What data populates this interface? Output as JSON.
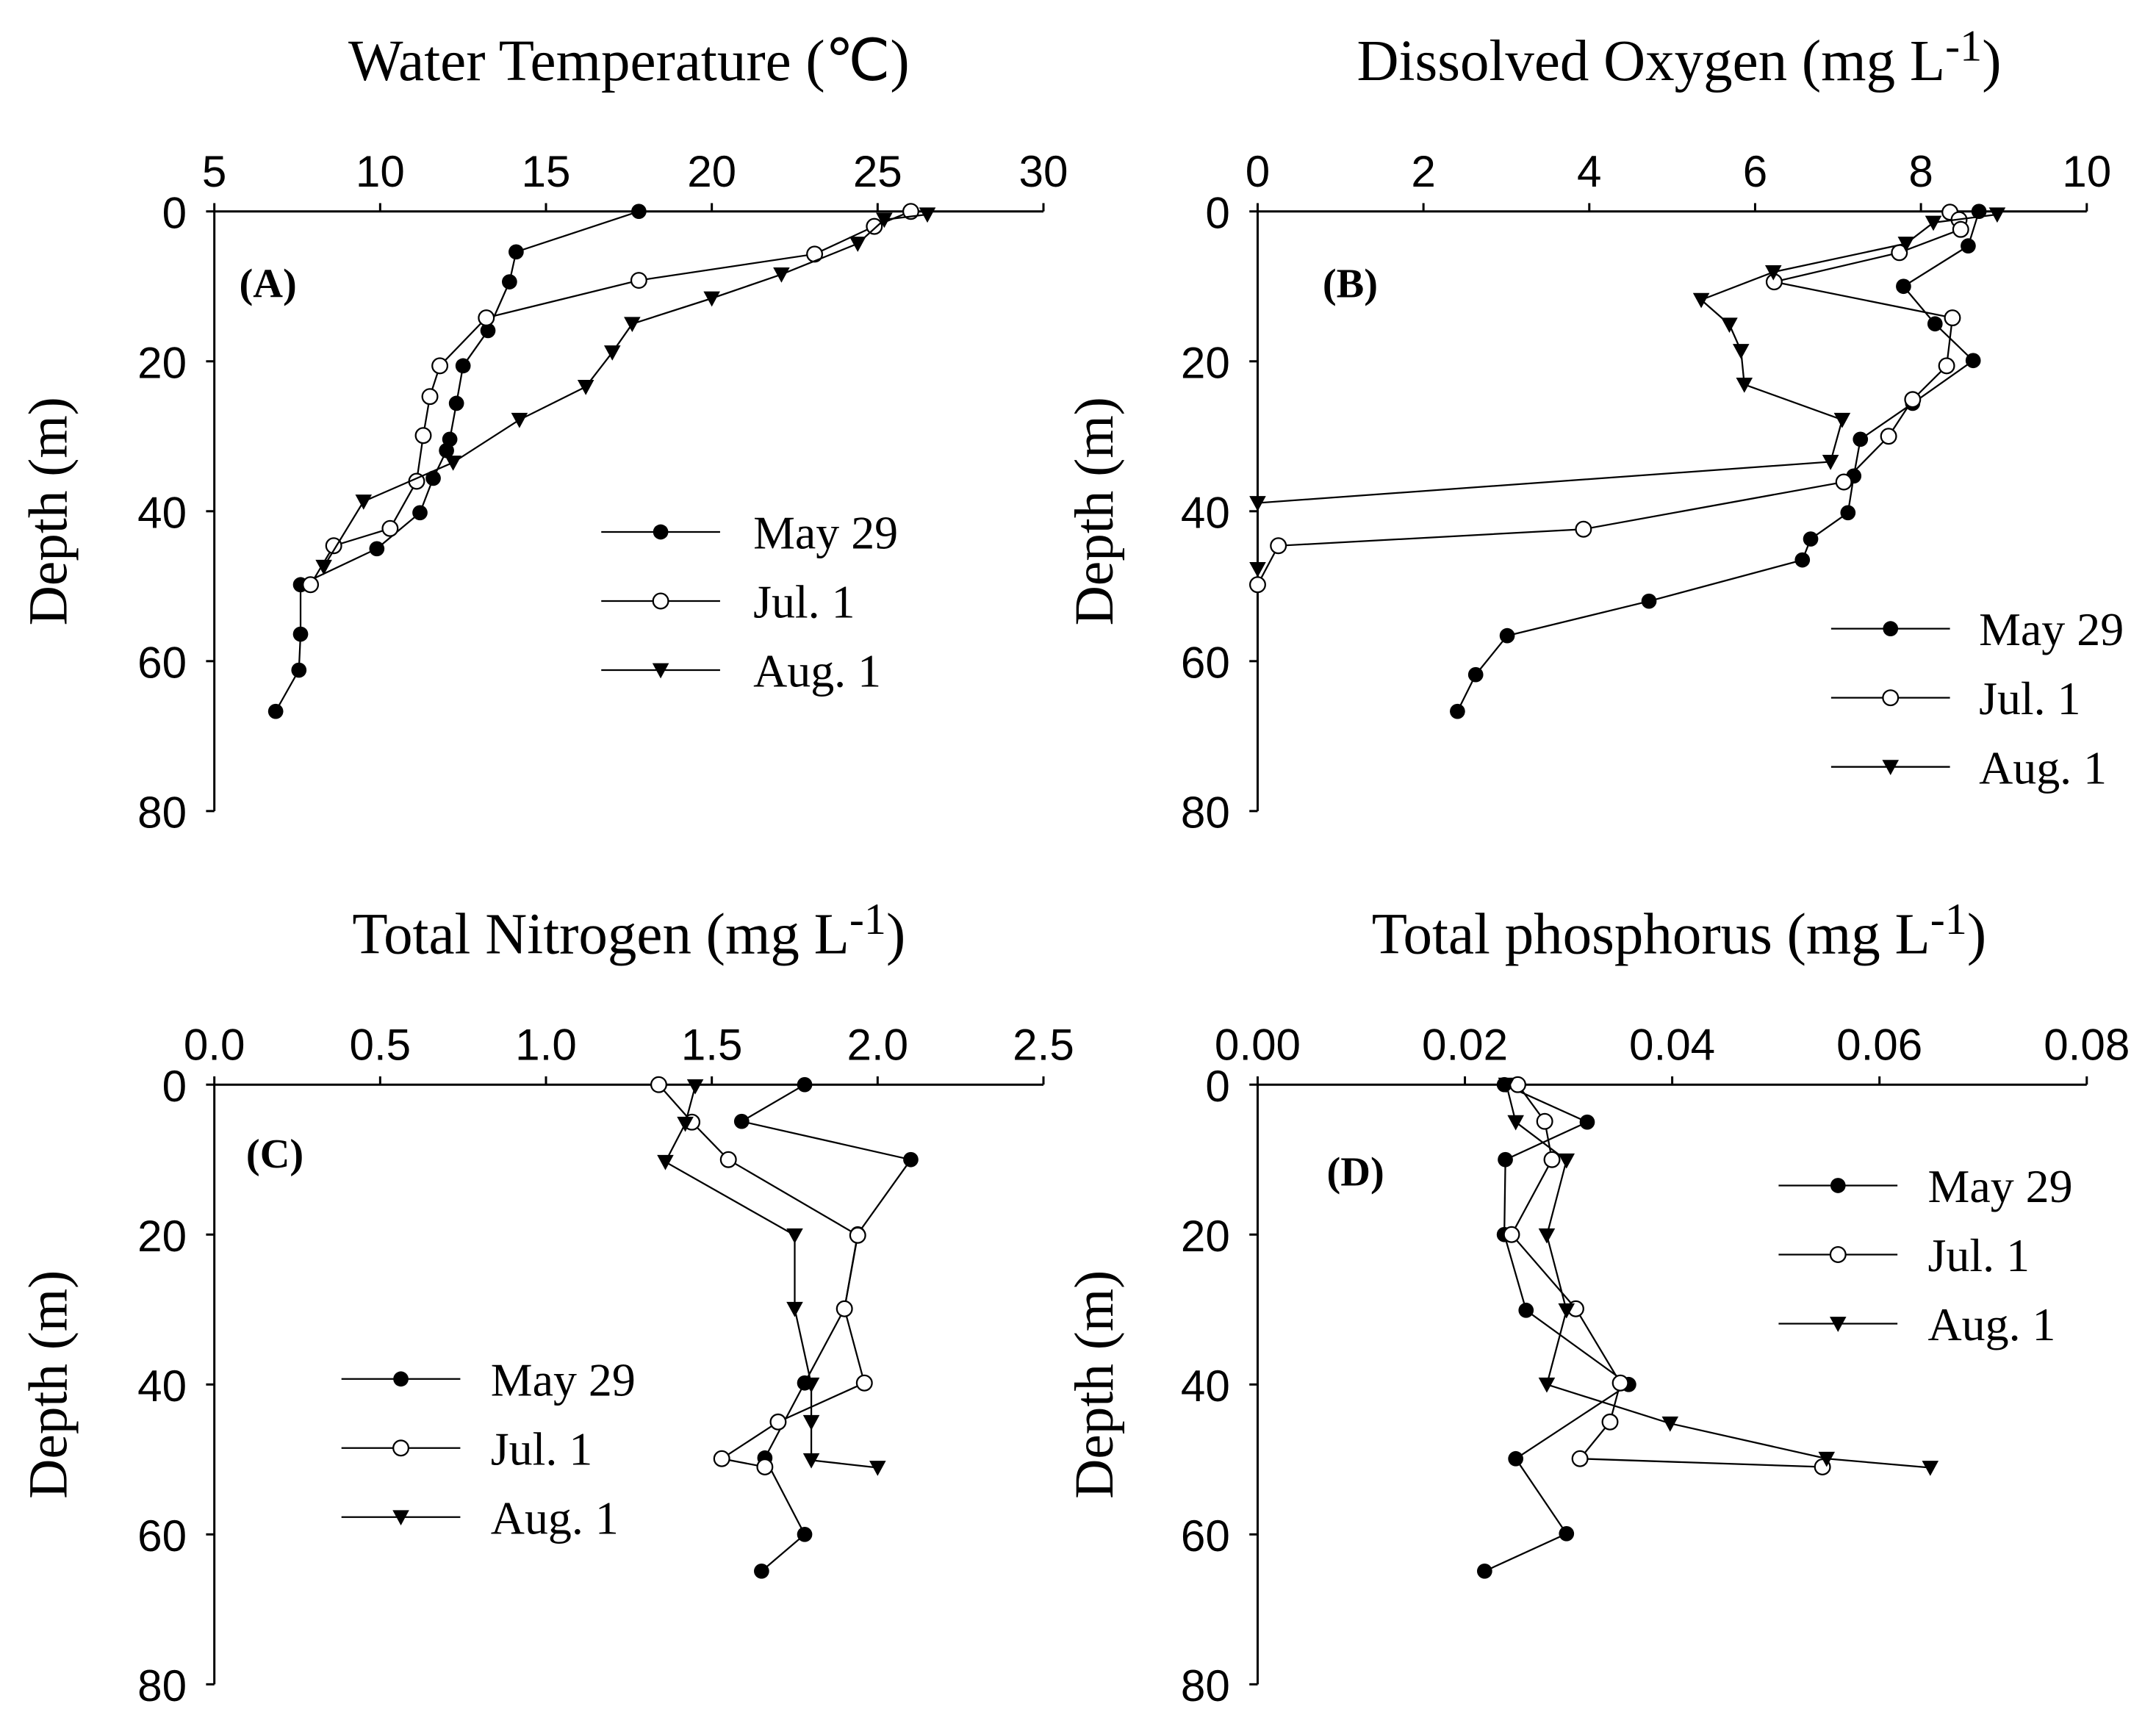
{
  "chart_data": [
    {
      "type": "line",
      "panel": "(A)",
      "title": "Water Temperature (℃)",
      "title_main": "Water Temperature (℃)",
      "title_sup": "",
      "title_end": "",
      "xlabel": "Water Temperature (℃)",
      "ylabel": "Depth (m)",
      "xlim": [
        5,
        30
      ],
      "ylim": [
        0,
        80
      ],
      "y_inverted": true,
      "x_axis_position": "top",
      "xticks": [
        "5",
        "10",
        "15",
        "20",
        "25",
        "30"
      ],
      "xtick_values": [
        5,
        10,
        15,
        20,
        25,
        30
      ],
      "yticks": [
        "0",
        "20",
        "40",
        "60",
        "80"
      ],
      "ytick_values": [
        0,
        20,
        40,
        60,
        80
      ],
      "legend_position": "center-right",
      "series": [
        {
          "name": "May 29",
          "marker": "filled-circle",
          "points": [
            [
              17.8,
              0
            ],
            [
              14.1,
              5.4
            ],
            [
              13.9,
              9.4
            ],
            [
              13.25,
              15.9
            ],
            [
              12.5,
              20.6
            ],
            [
              12.3,
              25.6
            ],
            [
              12.1,
              30.4
            ],
            [
              12.0,
              31.9
            ],
            [
              11.6,
              35.6
            ],
            [
              11.2,
              40.2
            ],
            [
              9.9,
              45
            ],
            [
              7.6,
              49.8
            ],
            [
              7.6,
              56.4
            ],
            [
              7.55,
              61.2
            ],
            [
              6.85,
              66.7
            ]
          ]
        },
        {
          "name": "Jul. 1",
          "marker": "open-circle",
          "points": [
            [
              26.0,
              0
            ],
            [
              24.9,
              2
            ],
            [
              23.1,
              5.7
            ],
            [
              17.8,
              9.2
            ],
            [
              13.2,
              14.2
            ],
            [
              11.8,
              20.6
            ],
            [
              11.5,
              24.7
            ],
            [
              11.3,
              29.9
            ],
            [
              11.1,
              36
            ],
            [
              10.3,
              42.3
            ],
            [
              8.6,
              44.6
            ],
            [
              7.9,
              49.8
            ]
          ]
        },
        {
          "name": "Aug. 1",
          "marker": "filled-triangle-down",
          "points": [
            [
              26.5,
              0.4
            ],
            [
              25.2,
              1.1
            ],
            [
              24.4,
              4.3
            ],
            [
              22.1,
              8.4
            ],
            [
              20.0,
              11.6
            ],
            [
              17.6,
              15
            ],
            [
              17.0,
              18.8
            ],
            [
              16.2,
              23.4
            ],
            [
              14.2,
              27.8
            ],
            [
              12.2,
              33.5
            ],
            [
              9.5,
              38.7
            ],
            [
              8.3,
              47.4
            ]
          ]
        }
      ]
    },
    {
      "type": "line",
      "panel": "(B)",
      "title": "Dissolved Oxygen (mg L-1)",
      "title_main": "Dissolved Oxygen (mg L",
      "title_sup": "-1",
      "title_end": ")",
      "xlabel": "Dissolved Oxygen (mg L-1)",
      "ylabel": "Depth (m)",
      "xlim": [
        0,
        10
      ],
      "ylim": [
        0,
        80
      ],
      "y_inverted": true,
      "x_axis_position": "top",
      "xticks": [
        "0",
        "2",
        "4",
        "6",
        "8",
        "10"
      ],
      "xtick_values": [
        0,
        2,
        4,
        6,
        8,
        10
      ],
      "yticks": [
        "0",
        "20",
        "40",
        "60",
        "80"
      ],
      "ytick_values": [
        0,
        20,
        40,
        60,
        80
      ],
      "legend_position": "bottom-right",
      "series": [
        {
          "name": "May 29",
          "marker": "filled-circle",
          "points": [
            [
              8.7,
              0
            ],
            [
              8.57,
              4.6
            ],
            [
              7.79,
              10
            ],
            [
              8.17,
              15
            ],
            [
              8.63,
              19.9
            ],
            [
              7.9,
              25.6
            ],
            [
              7.27,
              30.4
            ],
            [
              7.19,
              35.3
            ],
            [
              7.12,
              40.2
            ],
            [
              6.67,
              43.7
            ],
            [
              6.57,
              46.5
            ],
            [
              4.72,
              52
            ],
            [
              3.01,
              56.6
            ],
            [
              2.63,
              61.8
            ],
            [
              2.41,
              66.7
            ]
          ]
        },
        {
          "name": "Jul. 1",
          "marker": "open-circle",
          "points": [
            [
              8.35,
              0.1
            ],
            [
              8.46,
              1.1
            ],
            [
              8.48,
              2.4
            ],
            [
              7.74,
              5.5
            ],
            [
              6.23,
              9.4
            ],
            [
              8.38,
              14.2
            ],
            [
              8.31,
              20.6
            ],
            [
              7.9,
              25.1
            ],
            [
              7.61,
              30
            ],
            [
              7.07,
              36.1
            ],
            [
              3.93,
              42.4
            ],
            [
              0.25,
              44.6
            ],
            [
              0,
              49.8
            ]
          ]
        },
        {
          "name": "Aug. 1",
          "marker": "filled-triangle-down",
          "points": [
            [
              8.92,
              0.4
            ],
            [
              8.15,
              1.5
            ],
            [
              7.82,
              4.3
            ],
            [
              6.22,
              8.1
            ],
            [
              5.35,
              11.8
            ],
            [
              5.69,
              15.1
            ],
            [
              5.83,
              18.6
            ],
            [
              5.87,
              23.1
            ],
            [
              7.05,
              27.8
            ],
            [
              6.91,
              33.4
            ],
            [
              0,
              38.9
            ],
            [
              0,
              47.7
            ]
          ]
        }
      ]
    },
    {
      "type": "line",
      "panel": "(C)",
      "title": "Total Nitrogen (mg L-1)",
      "title_main": "Total Nitrogen (mg L",
      "title_sup": "-1",
      "title_end": ")",
      "xlabel": "Total Nitrogen (mg L-1)",
      "ylabel": "Depth (m)",
      "xlim": [
        0,
        2.5
      ],
      "ylim": [
        0,
        80
      ],
      "y_inverted": true,
      "x_axis_position": "top",
      "xticks": [
        "0.0",
        "0.5",
        "1.0",
        "1.5",
        "2.0",
        "2.5"
      ],
      "xtick_values": [
        0,
        0.5,
        1,
        1.5,
        2,
        2.5
      ],
      "yticks": [
        "0",
        "20",
        "40",
        "60",
        "80"
      ],
      "ytick_values": [
        0,
        20,
        40,
        60,
        80
      ],
      "legend_position": "center-left",
      "series": [
        {
          "name": "May 29",
          "marker": "filled-circle",
          "points": [
            [
              1.78,
              0
            ],
            [
              1.59,
              4.9
            ],
            [
              2.1,
              10
            ],
            [
              1.94,
              19.9
            ],
            [
              1.9,
              29.9
            ],
            [
              1.78,
              39.8
            ],
            [
              1.66,
              49.8
            ],
            [
              1.78,
              60
            ],
            [
              1.65,
              64.9
            ]
          ]
        },
        {
          "name": "Jul. 1",
          "marker": "open-circle",
          "points": [
            [
              1.34,
              0
            ],
            [
              1.44,
              5
            ],
            [
              1.55,
              10
            ],
            [
              1.94,
              20.1
            ],
            [
              1.9,
              29.9
            ],
            [
              1.96,
              39.8
            ],
            [
              1.7,
              45
            ],
            [
              1.53,
              49.9
            ],
            [
              1.66,
              51
            ]
          ]
        },
        {
          "name": "Aug. 1",
          "marker": "filled-triangle-down",
          "points": [
            [
              1.45,
              0.2
            ],
            [
              1.42,
              5.2
            ],
            [
              1.36,
              10.3
            ],
            [
              1.75,
              20.1
            ],
            [
              1.75,
              29.9
            ],
            [
              1.8,
              40
            ],
            [
              1.8,
              45
            ],
            [
              1.8,
              50.1
            ],
            [
              2.0,
              51.1
            ]
          ]
        }
      ]
    },
    {
      "type": "line",
      "panel": "(D)",
      "title": "Total phosphorus (mg L-1)",
      "title_main": "Total phosphorus (mg L",
      "title_sup": "-1",
      "title_end": ")",
      "xlabel": "Total phosphorus (mg L-1)",
      "ylabel": "Depth (m)",
      "xlim": [
        0,
        0.08
      ],
      "ylim": [
        0,
        80
      ],
      "y_inverted": true,
      "x_axis_position": "top",
      "xticks": [
        "0.00",
        "0.02",
        "0.04",
        "0.06",
        "0.08"
      ],
      "xtick_values": [
        0,
        0.02,
        0.04,
        0.06,
        0.08
      ],
      "yticks": [
        "0",
        "20",
        "40",
        "60",
        "80"
      ],
      "ytick_values": [
        0,
        20,
        40,
        60,
        80
      ],
      "legend_position": "top-right",
      "series": [
        {
          "name": "May 29",
          "marker": "filled-circle",
          "points": [
            [
              0.0238,
              0
            ],
            [
              0.0318,
              5
            ],
            [
              0.0239,
              10
            ],
            [
              0.0238,
              20
            ],
            [
              0.0259,
              30.1
            ],
            [
              0.0358,
              40
            ],
            [
              0.0249,
              49.9
            ],
            [
              0.0298,
              59.9
            ],
            [
              0.0219,
              64.9
            ]
          ]
        },
        {
          "name": "Jul. 1",
          "marker": "open-circle",
          "points": [
            [
              0.0251,
              0
            ],
            [
              0.0277,
              4.9
            ],
            [
              0.0284,
              10
            ],
            [
              0.0245,
              20
            ],
            [
              0.0307,
              29.9
            ],
            [
              0.035,
              39.8
            ],
            [
              0.034,
              45
            ],
            [
              0.0311,
              49.9
            ],
            [
              0.0545,
              51
            ]
          ]
        },
        {
          "name": "Aug. 1",
          "marker": "filled-triangle-down",
          "points": [
            [
              0.024,
              0
            ],
            [
              0.0249,
              5
            ],
            [
              0.0298,
              10.1
            ],
            [
              0.0279,
              20.1
            ],
            [
              0.0298,
              30.1
            ],
            [
              0.0279,
              40
            ],
            [
              0.0398,
              45.2
            ],
            [
              0.0549,
              49.9
            ],
            [
              0.0649,
              51.1
            ]
          ]
        }
      ]
    }
  ]
}
